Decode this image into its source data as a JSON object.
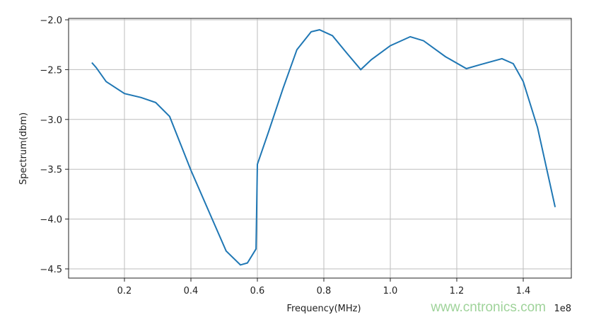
{
  "chart_data": {
    "type": "line",
    "title": "",
    "xlabel": "Frequency(MHz)",
    "ylabel": "Spectrum(dbm)",
    "x_offset_label": "1e8",
    "xlim": [
      0.07,
      1.55
    ],
    "ylim": [
      -4.55,
      -1.98
    ],
    "xticks": [
      0.2,
      0.4,
      0.6,
      0.8,
      1.0,
      1.2,
      1.4
    ],
    "xtick_labels": [
      "0.2",
      "0.4",
      "0.6",
      "0.8",
      "1.0",
      "1.2",
      "1.4"
    ],
    "yticks": [
      -2.0,
      -2.5,
      -3.0,
      -3.5,
      -4.0,
      -4.5
    ],
    "ytick_labels": [
      "−2.0",
      "−2.5",
      "−3.0",
      "−3.5",
      "−4.0",
      "−4.5"
    ],
    "grid": true,
    "series": [
      {
        "color": "#1f77b4",
        "x": [
          0.102,
          0.115,
          0.145,
          0.2,
          0.25,
          0.294,
          0.336,
          0.4,
          0.464,
          0.506,
          0.549,
          0.57,
          0.596,
          0.6,
          0.634,
          0.677,
          0.719,
          0.762,
          0.787,
          0.826,
          0.868,
          0.911,
          0.943,
          1.0,
          1.06,
          1.1,
          1.166,
          1.229,
          1.27,
          1.336,
          1.37,
          1.4,
          1.443,
          1.496
        ],
        "y": [
          -2.43,
          -2.48,
          -2.62,
          -2.74,
          -2.78,
          -2.83,
          -2.97,
          -3.51,
          -4.0,
          -4.32,
          -4.46,
          -4.44,
          -4.3,
          -3.45,
          -3.12,
          -2.69,
          -2.3,
          -2.12,
          -2.1,
          -2.16,
          -2.33,
          -2.5,
          -2.4,
          -2.26,
          -2.17,
          -2.21,
          -2.37,
          -2.49,
          -2.45,
          -2.39,
          -2.44,
          -2.62,
          -3.08,
          -3.88
        ]
      }
    ]
  },
  "watermark": "www.cntronics.com"
}
